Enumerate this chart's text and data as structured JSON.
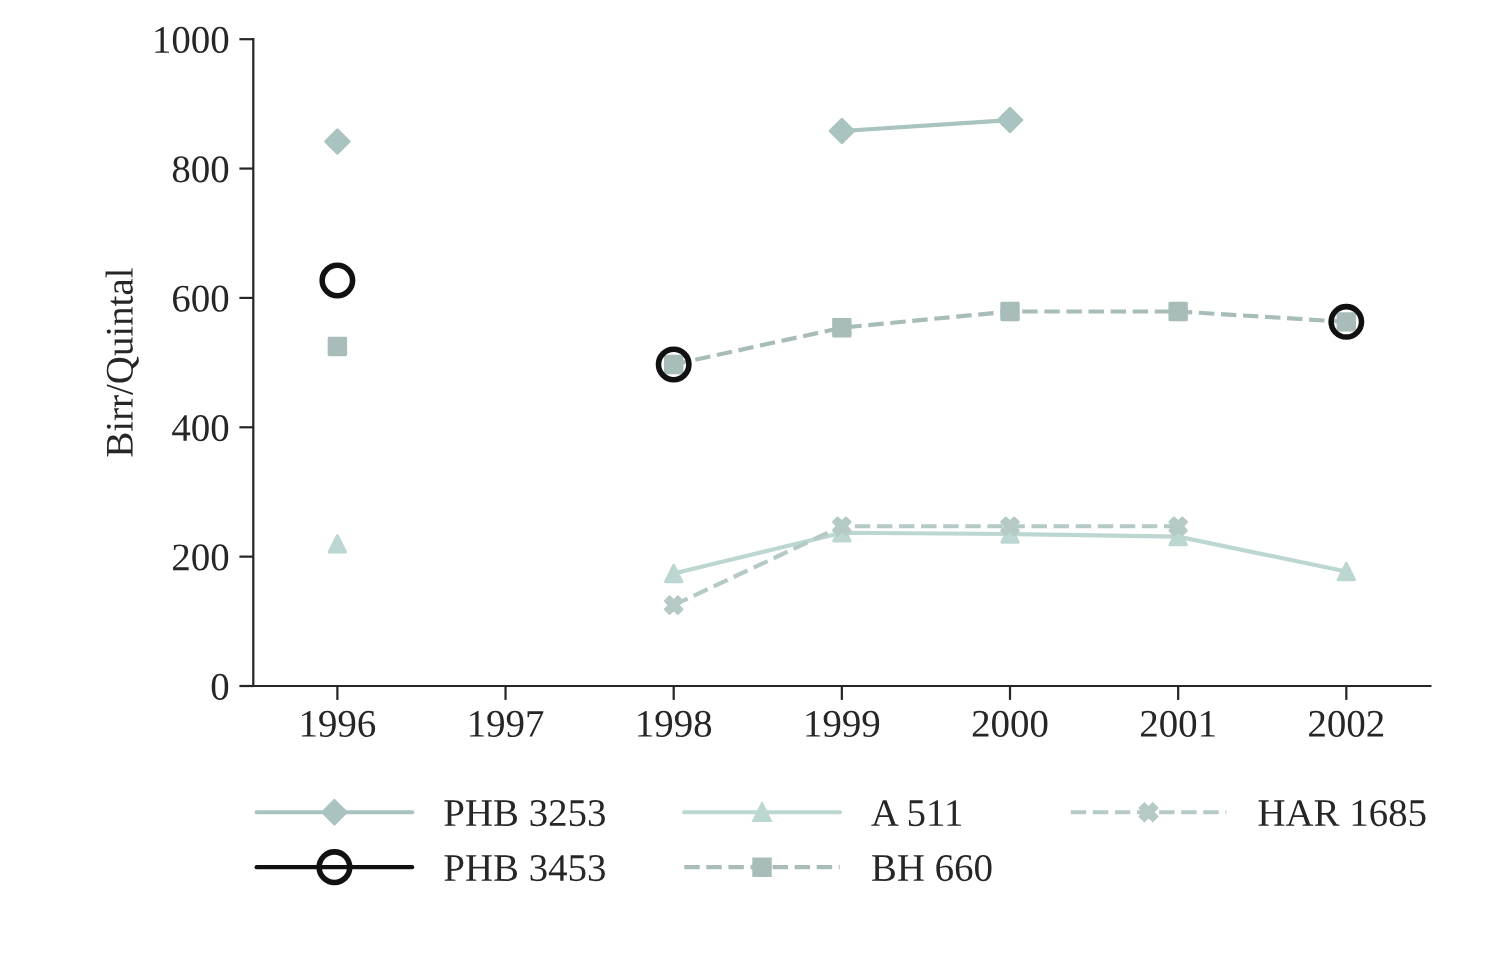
{
  "chart_data": {
    "type": "line",
    "ylabel": "Birr/Quintal",
    "categories": [
      "1996",
      "1997",
      "1998",
      "1999",
      "2000",
      "2001",
      "2002"
    ],
    "series": [
      {
        "name": "PHB 3253",
        "color": "#a9c4c0",
        "marker": "diamond",
        "line_style": "solid",
        "values": [
          842,
          null,
          null,
          858,
          875,
          null,
          null
        ]
      },
      {
        "name": "PHB 3453",
        "type": "scatter",
        "color": "#111111",
        "marker": "circle",
        "line_style": "solid",
        "values": [
          627,
          null,
          497,
          null,
          null,
          null,
          563
        ]
      },
      {
        "name": "A 511",
        "color": "#bcd6d2",
        "marker": "triangle",
        "line_style": "solid",
        "values": [
          220,
          null,
          174,
          237,
          235,
          231,
          177
        ]
      },
      {
        "name": "BH 660",
        "color": "#a8bdb9",
        "marker": "square",
        "line_style": "dashed",
        "values": [
          525,
          null,
          497,
          554,
          579,
          579,
          563
        ]
      },
      {
        "name": "HAR 1685",
        "color": "#b5c9c6",
        "marker": "cross",
        "line_style": "dashed",
        "values": [
          null,
          null,
          125,
          247,
          247,
          247,
          null
        ]
      }
    ],
    "ylim": [
      0,
      1000
    ],
    "yticks": [
      0,
      200,
      400,
      600,
      800,
      1000
    ],
    "grid": false,
    "legend": "bottom"
  }
}
